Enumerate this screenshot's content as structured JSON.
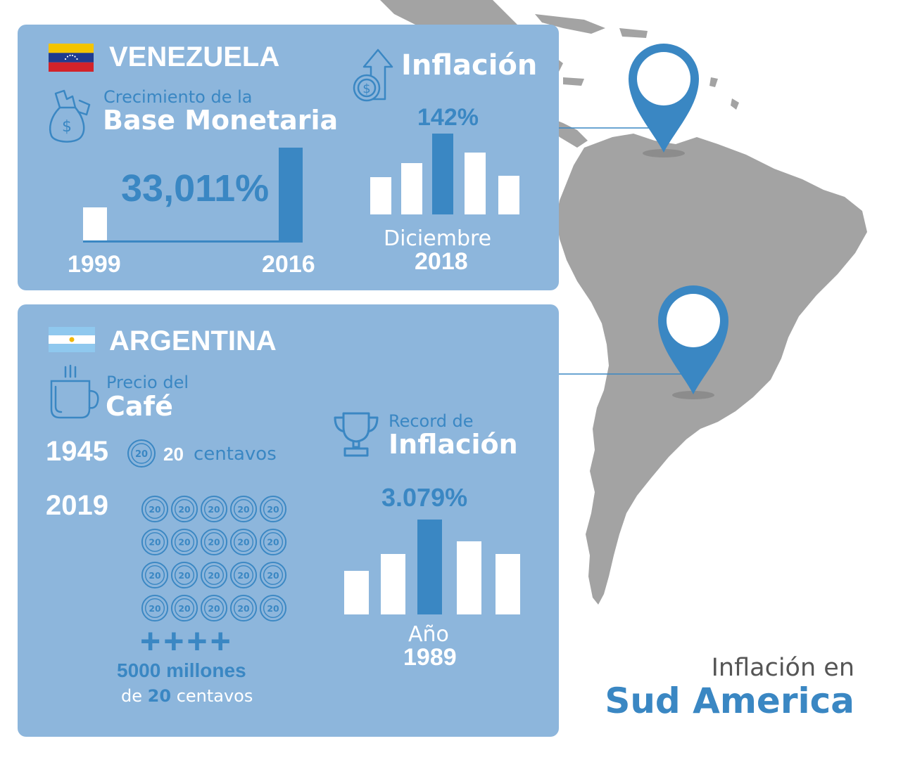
{
  "venezuela": {
    "country": "VENEZUELA",
    "base_monetaria": {
      "subtitle": "Crecimiento de la",
      "title": "Base Monetaria",
      "value": "33,011%",
      "year_start": "1999",
      "year_end": "2016"
    },
    "inflacion": {
      "title": "Inflación",
      "value": "142%",
      "month": "Diciembre",
      "year": "2018"
    }
  },
  "argentina": {
    "country": "ARGENTINA",
    "cafe": {
      "subtitle": "Precio del",
      "title": "Café",
      "year_1945": "1945",
      "amount_1945": "20",
      "unit_1945": "centavos",
      "year_2019": "2019",
      "plus_signs": "++++",
      "total_line1": "5000 millones",
      "total_line2_prefix": "de",
      "total_line2_amount": "20",
      "total_line2_unit": "centavos",
      "coin_label": "20"
    },
    "record": {
      "subtitle": "Record de",
      "title": "Inflación",
      "value": "3.079%",
      "label": "Año",
      "year": "1989"
    }
  },
  "footer": {
    "title_line1": "Inflación en",
    "title_line2": "Sud America"
  },
  "colors": {
    "panel": "#8db6dc",
    "accent": "#3a87c3",
    "map": "#a3a3a3",
    "text_dark": "#555555"
  },
  "icons": [
    "flag-venezuela-icon",
    "money-bag-icon",
    "inflation-arrow-coin-icon",
    "flag-argentina-icon",
    "coffee-mug-icon",
    "trophy-icon",
    "coin-icon",
    "map-pin-icon"
  ]
}
